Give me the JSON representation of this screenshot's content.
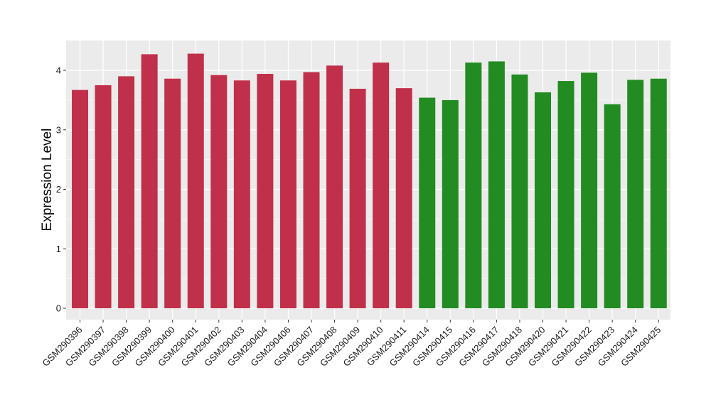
{
  "chart_data": {
    "type": "bar",
    "title": "",
    "xlabel": "",
    "ylabel": "Expression Level",
    "ylim": [
      0,
      4.5
    ],
    "yticks": [
      0,
      1,
      2,
      3,
      4
    ],
    "grid": true,
    "legend": "none",
    "categories": [
      "GSM290396",
      "GSM290397",
      "GSM290398",
      "GSM290399",
      "GSM290400",
      "GSM290401",
      "GSM290402",
      "GSM290403",
      "GSM290404",
      "GSM290406",
      "GSM290407",
      "GSM290408",
      "GSM290409",
      "GSM290410",
      "GSM290411",
      "GSM290414",
      "GSM290415",
      "GSM290416",
      "GSM290417",
      "GSM290418",
      "GSM290420",
      "GSM290421",
      "GSM290422",
      "GSM290423",
      "GSM290424",
      "GSM290425"
    ],
    "values": [
      3.67,
      3.75,
      3.9,
      4.27,
      3.86,
      4.28,
      3.92,
      3.83,
      3.94,
      3.83,
      3.97,
      4.08,
      3.69,
      4.13,
      3.7,
      3.54,
      3.5,
      4.13,
      4.15,
      3.93,
      3.63,
      3.82,
      3.96,
      3.43,
      3.84,
      3.86
    ],
    "groups": [
      0,
      0,
      0,
      0,
      0,
      0,
      0,
      0,
      0,
      0,
      0,
      0,
      0,
      0,
      0,
      1,
      1,
      1,
      1,
      1,
      1,
      1,
      1,
      1,
      1,
      1
    ],
    "colors": [
      "#c0304a",
      "#228b22"
    ],
    "panel_background": "#ebebeb",
    "grid_color": "#ffffff"
  }
}
